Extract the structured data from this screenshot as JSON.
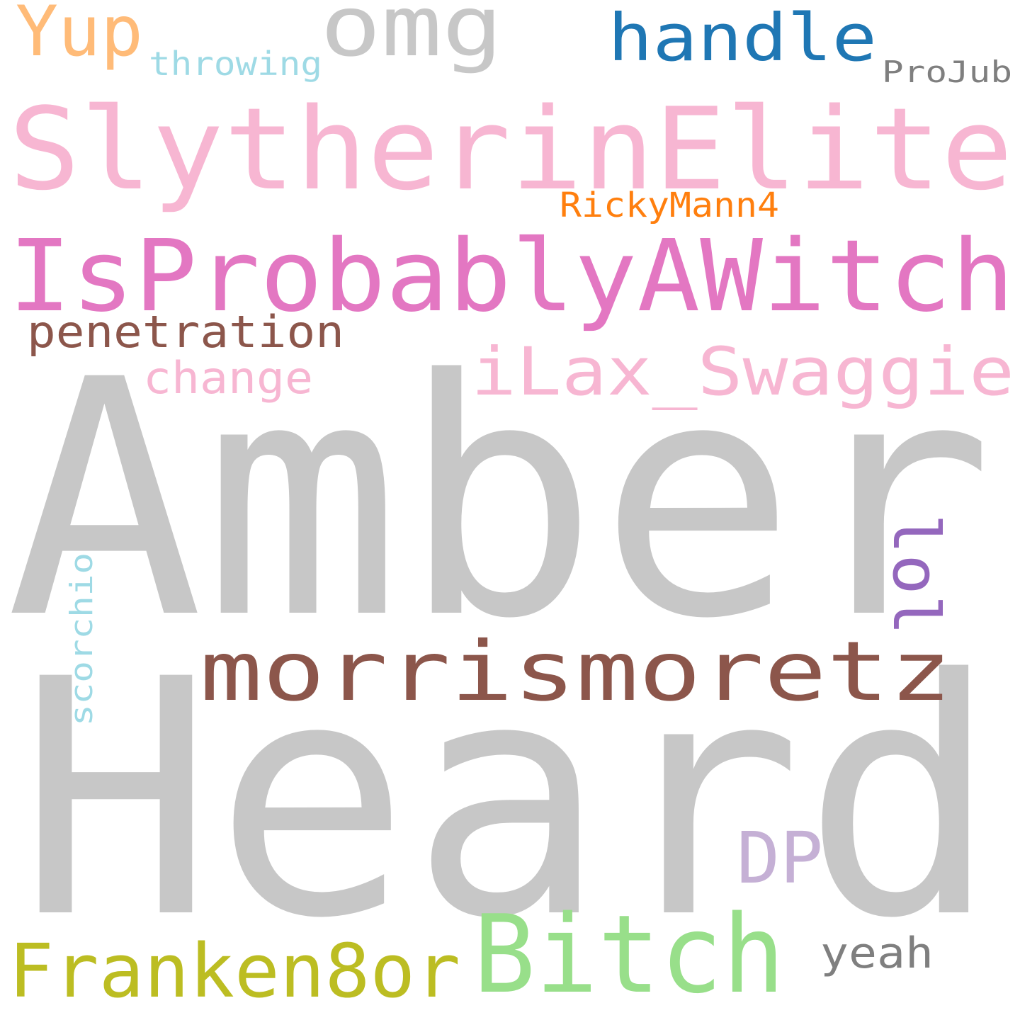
{
  "words": [
    {
      "id": "amber",
      "text": "Amber",
      "color": "#c7c7c7",
      "rotated": false
    },
    {
      "id": "heard",
      "text": "Heard",
      "color": "#c7c7c7",
      "rotated": false
    },
    {
      "id": "slytherinelite",
      "text": "SlytherinElite",
      "color": "#f7b6d2",
      "rotated": false
    },
    {
      "id": "isprobablyawitch",
      "text": "IsProbablyAWitch",
      "color": "#e377c2",
      "rotated": false
    },
    {
      "id": "morrismoretz",
      "text": "morrismoretz",
      "color": "#8c564b",
      "rotated": false
    },
    {
      "id": "ilax-swaggie",
      "text": "iLax_Swaggie",
      "color": "#f7b6d2",
      "rotated": false
    },
    {
      "id": "bitch",
      "text": "Bitch",
      "color": "#98df8a",
      "rotated": false
    },
    {
      "id": "franken8or",
      "text": "Franken8or",
      "color": "#bcbd22",
      "rotated": false
    },
    {
      "id": "omg",
      "text": "omg",
      "color": "#c7c7c7",
      "rotated": false
    },
    {
      "id": "handle",
      "text": "handle",
      "color": "#1f77b4",
      "rotated": false
    },
    {
      "id": "yup",
      "text": "Yup",
      "color": "#ffbb78",
      "rotated": false
    },
    {
      "id": "dp",
      "text": "DP",
      "color": "#c5b0d5",
      "rotated": false
    },
    {
      "id": "penetration",
      "text": "penetration",
      "color": "#8c564b",
      "rotated": false
    },
    {
      "id": "change",
      "text": "change",
      "color": "#f7b6d2",
      "rotated": false
    },
    {
      "id": "lol",
      "text": "lol",
      "color": "#9467bd",
      "rotated": true
    },
    {
      "id": "yeah",
      "text": "yeah",
      "color": "#7f7f7f",
      "rotated": false
    },
    {
      "id": "projub",
      "text": "ProJub",
      "color": "#7f7f7f",
      "rotated": false
    },
    {
      "id": "rickymann4",
      "text": "RickyMann4",
      "color": "#ff7f0e",
      "rotated": false
    },
    {
      "id": "throwing",
      "text": "throwing",
      "color": "#9edae5",
      "rotated": false
    },
    {
      "id": "scorchio",
      "text": "scorchio",
      "color": "#9edae5",
      "rotated": true
    }
  ]
}
